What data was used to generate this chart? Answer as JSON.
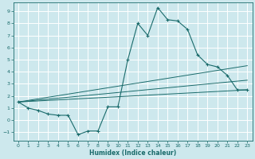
{
  "xlabel": "Humidex (Indice chaleur)",
  "bg_color": "#cde8ed",
  "grid_color": "#ffffff",
  "line_color": "#1a6b6b",
  "xlim": [
    -0.5,
    23.5
  ],
  "ylim": [
    -1.7,
    9.7
  ],
  "xticks": [
    0,
    1,
    2,
    3,
    4,
    5,
    6,
    7,
    8,
    9,
    10,
    11,
    12,
    13,
    14,
    15,
    16,
    17,
    18,
    19,
    20,
    21,
    22,
    23
  ],
  "yticks": [
    -1,
    0,
    1,
    2,
    3,
    4,
    5,
    6,
    7,
    8,
    9
  ],
  "curve1_x": [
    0,
    1,
    2,
    3,
    4,
    5,
    6,
    7,
    8,
    9,
    10,
    11,
    12,
    13,
    14,
    15,
    16,
    17,
    18,
    19,
    20,
    21,
    22,
    23
  ],
  "curve1_y": [
    1.5,
    1.0,
    0.8,
    0.5,
    0.4,
    0.4,
    -1.2,
    -0.9,
    -0.9,
    1.1,
    1.1,
    5.0,
    8.0,
    7.0,
    9.3,
    8.3,
    8.2,
    7.5,
    5.4,
    4.6,
    4.4,
    3.7,
    2.5,
    2.5
  ],
  "line1_x": [
    0,
    23
  ],
  "line1_y": [
    1.5,
    2.5
  ],
  "line2_x": [
    0,
    23
  ],
  "line2_y": [
    1.5,
    4.5
  ],
  "line3_x": [
    0,
    23
  ],
  "line3_y": [
    1.5,
    3.3
  ],
  "tick_fontsize": 4.5,
  "xlabel_fontsize": 5.5
}
